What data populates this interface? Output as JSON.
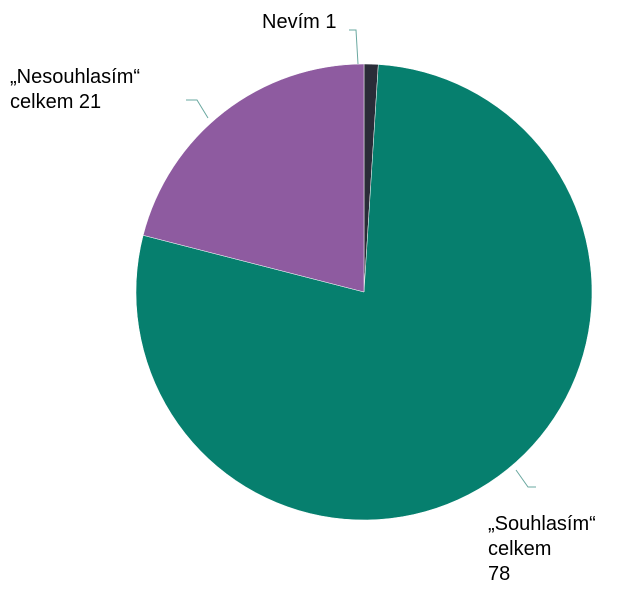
{
  "chart_data": {
    "type": "pie",
    "title": "",
    "slices": [
      {
        "label_lines": [
          "Nevím 1"
        ],
        "value": 1,
        "color": "#2a2c38"
      },
      {
        "label_lines": [
          "„Souhlasím“",
          "celkem",
          "78"
        ],
        "value": 78,
        "color": "#067f6e"
      },
      {
        "label_lines": [
          "„Nesouhlasím“",
          "celkem 21"
        ],
        "value": 21,
        "color": "#8e5ba0"
      }
    ],
    "leader_line_color": "#6aa8a0"
  }
}
